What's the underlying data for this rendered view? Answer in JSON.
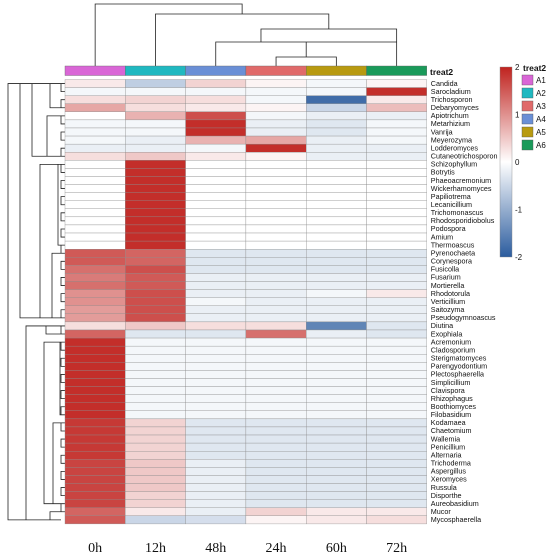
{
  "chart_data": {
    "type": "heatmap",
    "columns": [
      "0h",
      "12h",
      "48h",
      "24h",
      "60h",
      "72h"
    ],
    "column_groups": [
      "A1",
      "A2",
      "A4",
      "A3",
      "A5",
      "A6"
    ],
    "annotation_title": "treat2",
    "annotation_legend": [
      {
        "label": "A1",
        "color": "#d966d6"
      },
      {
        "label": "A2",
        "color": "#20b8c0"
      },
      {
        "label": "A3",
        "color": "#e06a6a"
      },
      {
        "label": "A4",
        "color": "#6a8fd6"
      },
      {
        "label": "A5",
        "color": "#b89a10"
      },
      {
        "label": "A6",
        "color": "#1a9a5a"
      }
    ],
    "color_scale": {
      "min": -2,
      "max": 2,
      "ticks": [
        2,
        1,
        0,
        -1,
        -2
      ],
      "colors": [
        "#2b5c9e",
        "#ffffff",
        "#c0231f"
      ]
    },
    "rows": [
      {
        "name": "Candida",
        "values": [
          0.2,
          -0.6,
          0.4,
          0.1,
          -0.1,
          0.1
        ]
      },
      {
        "name": "Sarocladium",
        "values": [
          -0.1,
          -0.1,
          -0.1,
          -0.1,
          -0.1,
          1.9
        ]
      },
      {
        "name": "Trichosporon",
        "values": [
          0.3,
          0.4,
          0.3,
          -0.1,
          -1.8,
          0.2
        ]
      },
      {
        "name": "Debaryomyces",
        "values": [
          0.8,
          0.3,
          0.2,
          0.1,
          -0.5,
          0.6
        ]
      },
      {
        "name": "Apiotrichum",
        "values": [
          0.0,
          0.7,
          1.6,
          -0.1,
          -0.2,
          -0.2
        ]
      },
      {
        "name": "Metarhizium",
        "values": [
          -0.1,
          -0.1,
          1.9,
          -0.2,
          -0.3,
          -0.1
        ]
      },
      {
        "name": "Vanrija",
        "values": [
          -0.1,
          -0.1,
          1.9,
          -0.2,
          -0.3,
          -0.1
        ]
      },
      {
        "name": "Meyerozyma",
        "values": [
          -0.1,
          -0.2,
          0.7,
          0.8,
          -0.2,
          -0.1
        ]
      },
      {
        "name": "Lodderomyces",
        "values": [
          -0.2,
          -0.2,
          -0.1,
          1.9,
          -0.2,
          -0.2
        ]
      },
      {
        "name": "Cutaneotrichosporon",
        "values": [
          0.3,
          0.5,
          0.2,
          0.1,
          -0.2,
          -0.2
        ]
      },
      {
        "name": "Schizophyllum",
        "values": [
          0.0,
          1.9,
          0.0,
          0.0,
          0.0,
          0.0
        ]
      },
      {
        "name": "Botrytis",
        "values": [
          0.0,
          1.9,
          0.0,
          0.0,
          0.0,
          0.0
        ]
      },
      {
        "name": "Phaeoacremonium",
        "values": [
          0.0,
          1.9,
          0.0,
          0.0,
          0.0,
          0.0
        ]
      },
      {
        "name": "Wickerhamomyces",
        "values": [
          0.0,
          1.9,
          0.0,
          0.0,
          0.0,
          0.0
        ]
      },
      {
        "name": "Papiliotrema",
        "values": [
          0.0,
          1.9,
          0.0,
          0.0,
          0.0,
          0.0
        ]
      },
      {
        "name": "Lecanicillium",
        "values": [
          0.0,
          1.9,
          0.0,
          0.0,
          0.0,
          0.0
        ]
      },
      {
        "name": "Trichomonascus",
        "values": [
          0.0,
          1.9,
          0.0,
          0.0,
          0.0,
          0.0
        ]
      },
      {
        "name": "Rhodosporidiobolus",
        "values": [
          0.0,
          1.9,
          0.0,
          0.0,
          0.0,
          0.0
        ]
      },
      {
        "name": "Podospora",
        "values": [
          0.0,
          1.9,
          0.0,
          0.0,
          0.0,
          0.0
        ]
      },
      {
        "name": "Amium",
        "values": [
          0.0,
          1.9,
          0.0,
          0.0,
          0.0,
          0.0
        ]
      },
      {
        "name": "Thermoascus",
        "values": [
          0.0,
          1.9,
          0.0,
          0.0,
          0.0,
          0.0
        ]
      },
      {
        "name": "Pyrenochaeta",
        "values": [
          1.5,
          1.4,
          -0.3,
          -0.3,
          -0.3,
          -0.3
        ]
      },
      {
        "name": "Corynespora",
        "values": [
          1.5,
          1.4,
          -0.3,
          -0.3,
          -0.3,
          -0.3
        ]
      },
      {
        "name": "Fusicolla",
        "values": [
          1.3,
          1.6,
          -0.3,
          -0.3,
          -0.3,
          -0.3
        ]
      },
      {
        "name": "Fusarium",
        "values": [
          1.2,
          1.5,
          -0.2,
          -0.2,
          -0.2,
          -0.2
        ]
      },
      {
        "name": "Mortierella",
        "values": [
          1.3,
          1.5,
          -0.2,
          -0.2,
          -0.2,
          -0.2
        ]
      },
      {
        "name": "Rhodotorula",
        "values": [
          1.0,
          1.6,
          -0.2,
          -0.2,
          -0.1,
          0.2
        ]
      },
      {
        "name": "Verticillium",
        "values": [
          1.0,
          1.6,
          -0.1,
          -0.2,
          -0.2,
          -0.2
        ]
      },
      {
        "name": "Saitozyma",
        "values": [
          0.9,
          1.6,
          -0.2,
          -0.2,
          -0.2,
          -0.2
        ]
      },
      {
        "name": "Pseudogymnoascus",
        "values": [
          0.9,
          1.6,
          -0.2,
          -0.2,
          -0.2,
          -0.2
        ]
      },
      {
        "name": "Diutina",
        "values": [
          0.3,
          0.5,
          0.3,
          0.3,
          -1.5,
          -0.3
        ]
      },
      {
        "name": "Exophiala",
        "values": [
          1.4,
          -0.3,
          -0.3,
          1.3,
          -0.2,
          -0.3
        ]
      },
      {
        "name": "Acremonium",
        "values": [
          1.9,
          -0.1,
          -0.1,
          -0.1,
          -0.1,
          -0.1
        ]
      },
      {
        "name": "Cladosporium",
        "values": [
          1.9,
          -0.1,
          -0.1,
          -0.1,
          -0.1,
          -0.1
        ]
      },
      {
        "name": "Sterigmatomyces",
        "values": [
          1.9,
          -0.1,
          -0.1,
          -0.1,
          -0.1,
          -0.1
        ]
      },
      {
        "name": "Parengyodontium",
        "values": [
          1.9,
          -0.1,
          -0.1,
          -0.1,
          -0.1,
          -0.1
        ]
      },
      {
        "name": "Plectosphaerella",
        "values": [
          1.9,
          -0.1,
          -0.1,
          -0.1,
          -0.1,
          -0.1
        ]
      },
      {
        "name": "Simplicillium",
        "values": [
          1.9,
          -0.1,
          -0.1,
          -0.1,
          -0.1,
          -0.1
        ]
      },
      {
        "name": "Clavispora",
        "values": [
          1.9,
          -0.1,
          -0.1,
          -0.1,
          -0.1,
          -0.1
        ]
      },
      {
        "name": "Rhizophagus",
        "values": [
          1.9,
          -0.1,
          -0.1,
          -0.1,
          -0.1,
          -0.1
        ]
      },
      {
        "name": "Boothiomyces",
        "values": [
          1.9,
          -0.1,
          -0.1,
          -0.1,
          -0.1,
          -0.1
        ]
      },
      {
        "name": "Filobasidium",
        "values": [
          1.9,
          -0.1,
          -0.1,
          -0.1,
          -0.1,
          -0.1
        ]
      },
      {
        "name": "Kodamaea",
        "values": [
          1.8,
          0.4,
          -0.3,
          -0.3,
          -0.3,
          -0.3
        ]
      },
      {
        "name": "Chaetomium",
        "values": [
          1.8,
          0.4,
          -0.3,
          -0.3,
          -0.3,
          -0.3
        ]
      },
      {
        "name": "Wallemia",
        "values": [
          1.8,
          0.4,
          -0.3,
          -0.3,
          -0.3,
          -0.3
        ]
      },
      {
        "name": "Penicillium",
        "values": [
          1.8,
          0.4,
          -0.3,
          -0.3,
          -0.3,
          -0.3
        ]
      },
      {
        "name": "Alternaria",
        "values": [
          1.8,
          0.4,
          -0.3,
          -0.3,
          -0.3,
          -0.3
        ]
      },
      {
        "name": "Trichoderma",
        "values": [
          1.7,
          0.5,
          -0.2,
          -0.3,
          -0.3,
          -0.3
        ]
      },
      {
        "name": "Aspergillus",
        "values": [
          1.7,
          0.5,
          -0.2,
          -0.3,
          -0.3,
          -0.3
        ]
      },
      {
        "name": "Xeromyces",
        "values": [
          1.7,
          0.5,
          -0.2,
          -0.3,
          -0.3,
          -0.3
        ]
      },
      {
        "name": "Russula",
        "values": [
          1.7,
          0.5,
          -0.2,
          -0.3,
          -0.3,
          -0.3
        ]
      },
      {
        "name": "Disporthe",
        "values": [
          1.7,
          0.4,
          -0.2,
          -0.3,
          -0.3,
          -0.3
        ]
      },
      {
        "name": "Aureobasidium",
        "values": [
          1.7,
          0.4,
          -0.2,
          -0.3,
          -0.3,
          -0.3
        ]
      },
      {
        "name": "Mucor",
        "values": [
          1.4,
          0.2,
          -0.2,
          0.4,
          0.2,
          0.2
        ]
      },
      {
        "name": "Mycosphaerella",
        "values": [
          1.5,
          -0.5,
          -0.4,
          0.1,
          0.2,
          0.3
        ]
      }
    ]
  }
}
